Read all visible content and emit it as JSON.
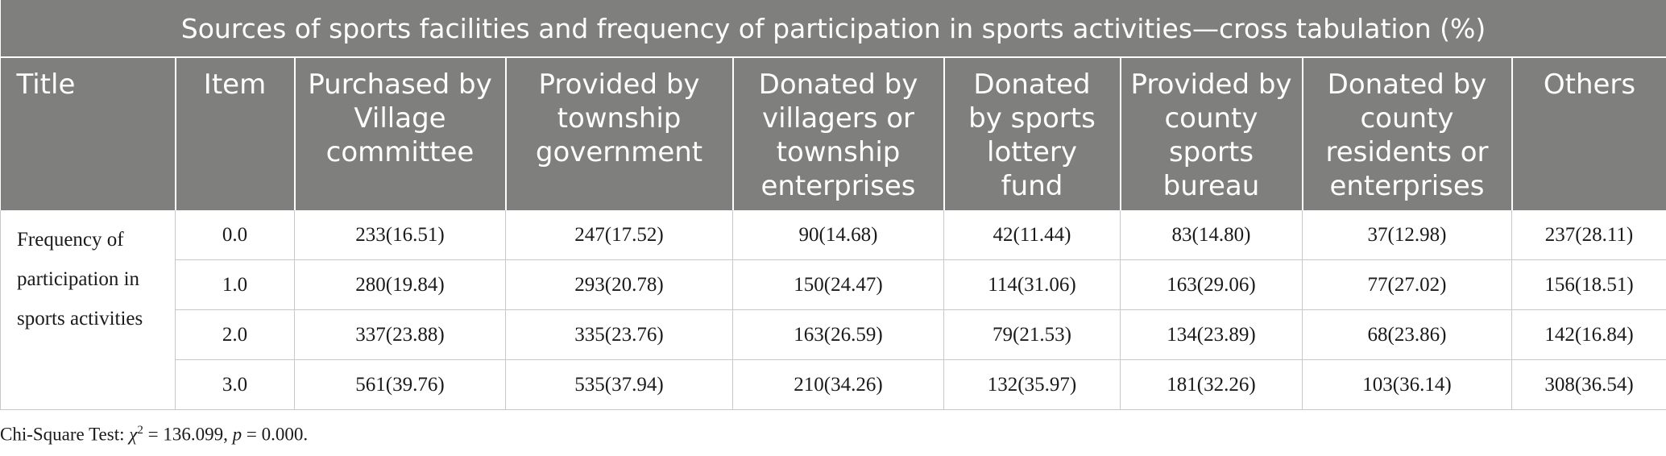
{
  "table": {
    "title": "Sources of sports facilities and frequency of participation in sports activities—cross tabulation (%)",
    "headers": [
      "Title",
      "Item",
      "Purchased by Village committee",
      "Provided by township government",
      "Donated by villagers or township enterprises",
      "Donated by sports lottery fund",
      "Provided by county sports bureau",
      "Donated by county residents or enterprises",
      "Others"
    ],
    "row_group_label": "Frequency of participation in sports activities",
    "rows": [
      {
        "item": "0.0",
        "cells": [
          "233(16.51)",
          "247(17.52)",
          "90(14.68)",
          "42(11.44)",
          "83(14.80)",
          "37(12.98)",
          "237(28.11)"
        ]
      },
      {
        "item": "1.0",
        "cells": [
          "280(19.84)",
          "293(20.78)",
          "150(24.47)",
          "114(31.06)",
          "163(29.06)",
          "77(27.02)",
          "156(18.51)"
        ]
      },
      {
        "item": "2.0",
        "cells": [
          "337(23.88)",
          "335(23.76)",
          "163(26.59)",
          "79(21.53)",
          "134(23.89)",
          "68(23.86)",
          "142(16.84)"
        ]
      },
      {
        "item": "3.0",
        "cells": [
          "561(39.76)",
          "535(37.94)",
          "210(34.26)",
          "132(35.97)",
          "181(32.26)",
          "103(36.14)",
          "308(36.54)"
        ]
      }
    ]
  },
  "footnote": {
    "prefix": "Chi-Square Test: ",
    "chi_symbol": "χ",
    "chi_exp": "2",
    "chi_value": " = 136.099, ",
    "p_symbol": "p",
    "p_value": " = 0.000."
  }
}
